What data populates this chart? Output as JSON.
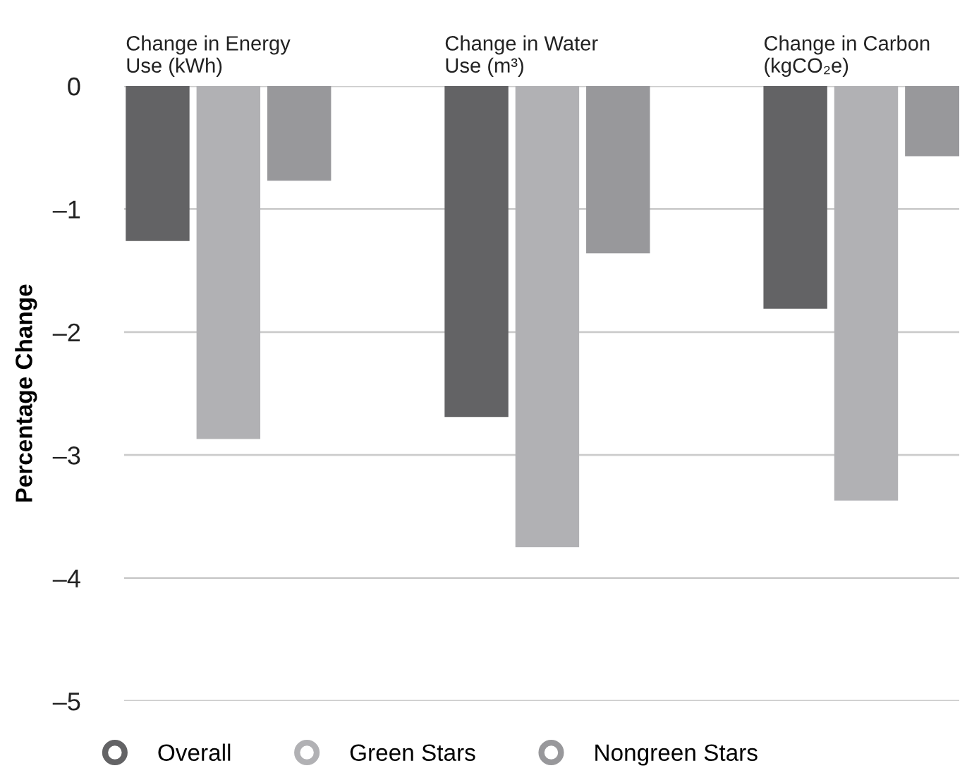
{
  "chart_data": {
    "type": "bar",
    "ylabel": "Percentage Change",
    "categories": [
      "Change in Energy\nUse (kWh)",
      "Change in Water\nUse (m³)",
      "Change in Carbon\n(kgCO₂e)"
    ],
    "series": [
      {
        "name": "Overall",
        "color": "#636365",
        "values": [
          -1.26,
          -2.69,
          -1.81
        ]
      },
      {
        "name": "Green Stars",
        "color": "#b1b1b4",
        "values": [
          -2.87,
          -3.75,
          -3.37
        ]
      },
      {
        "name": "Nongreen Stars",
        "color": "#98989b",
        "values": [
          -0.77,
          -1.36,
          -0.57
        ]
      }
    ],
    "ylim": [
      -5,
      0
    ],
    "yticks": [
      {
        "value": 0,
        "label": "0"
      },
      {
        "value": -1,
        "label": "–1"
      },
      {
        "value": -2,
        "label": "–2"
      },
      {
        "value": -3,
        "label": "–3"
      },
      {
        "value": -4,
        "label": "–4"
      },
      {
        "value": -5,
        "label": "–5"
      }
    ],
    "grid": "y",
    "legend": "bottom",
    "marker": "circle"
  }
}
